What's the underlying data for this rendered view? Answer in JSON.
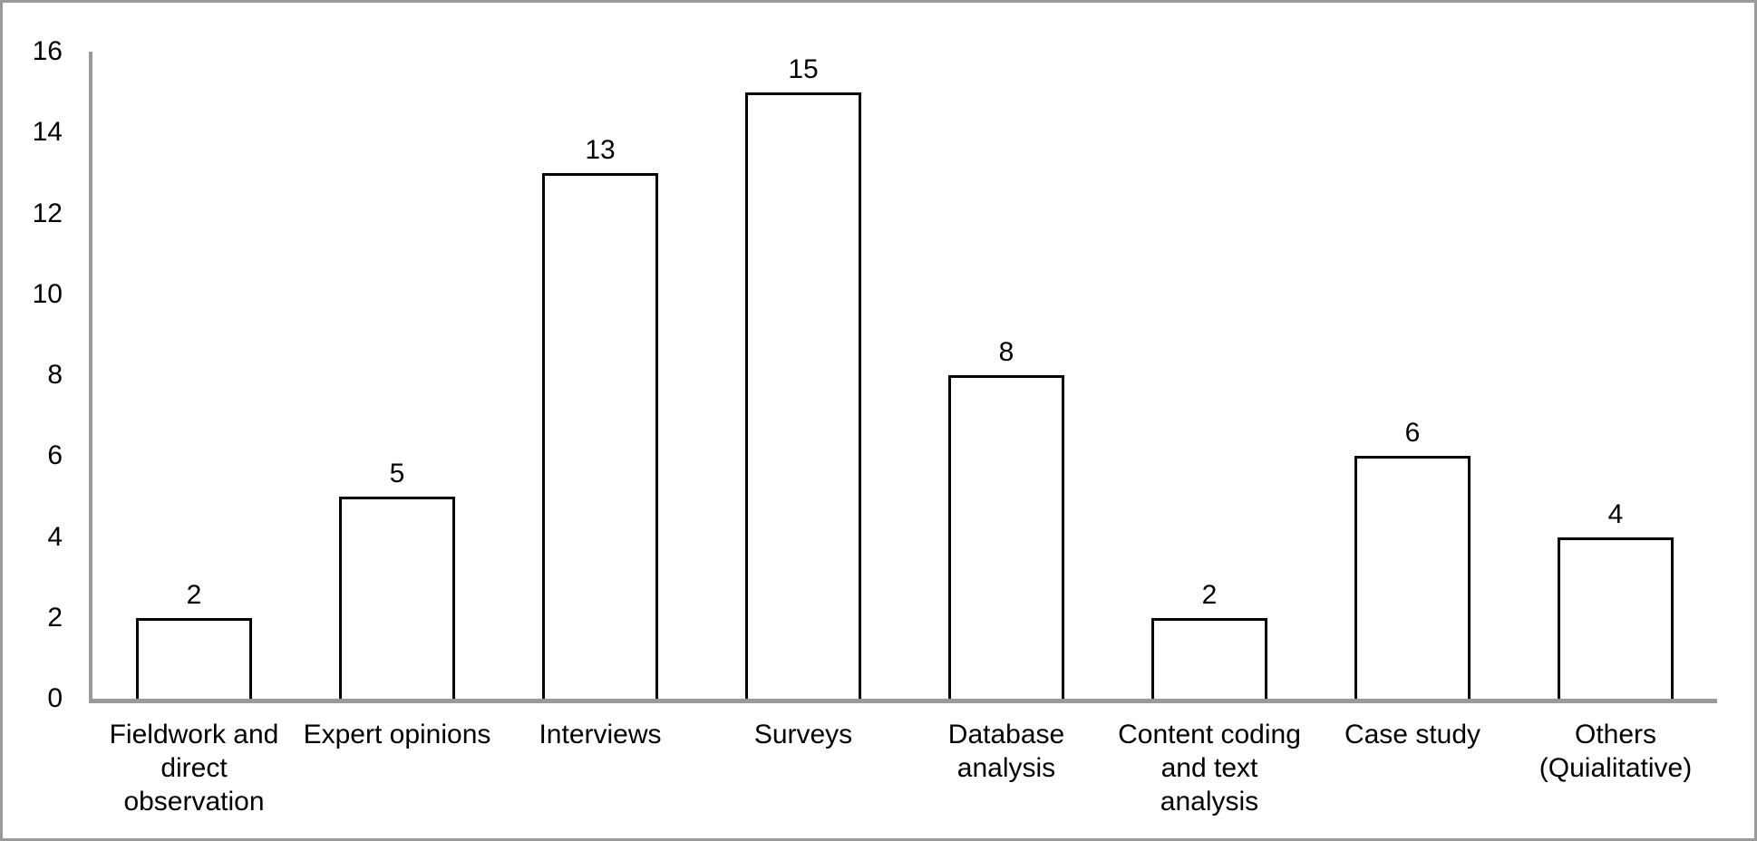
{
  "chart_data": {
    "type": "bar",
    "title": "",
    "xlabel": "",
    "ylabel": "",
    "categories": [
      "Fieldwork and direct observation",
      "Expert opinions",
      "Interviews",
      "Surveys",
      "Database analysis",
      "Content coding and text analysis",
      "Case study",
      "Others (Quialitative)"
    ],
    "category_label_lines": [
      [
        "Fieldwork and",
        "direct",
        "observation"
      ],
      [
        "Expert opinions"
      ],
      [
        "Interviews"
      ],
      [
        "Surveys"
      ],
      [
        "Database",
        "analysis"
      ],
      [
        "Content coding",
        "and text",
        "analysis"
      ],
      [
        "Case study"
      ],
      [
        "Others",
        "(Quialitative)"
      ]
    ],
    "values": [
      2,
      5,
      13,
      15,
      8,
      2,
      6,
      4
    ],
    "data_labels": [
      "2",
      "5",
      "13",
      "15",
      "8",
      "2",
      "6",
      "4"
    ],
    "ylim": [
      0,
      16
    ],
    "yticks": [
      0,
      2,
      4,
      6,
      8,
      10,
      12,
      14,
      16
    ],
    "grid": false,
    "legend_position": "none",
    "bar_fill_color": "#ffffff",
    "bar_border_color": "#000000",
    "axis_line_color": "#9a9a9a",
    "text_color": "#000000"
  }
}
